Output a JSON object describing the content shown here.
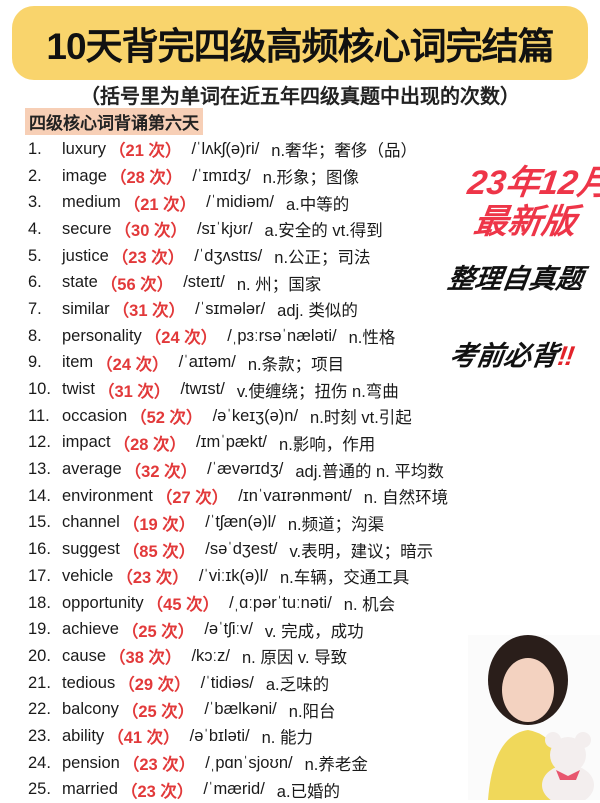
{
  "title": "10天背完四级高频核心词完结篇",
  "subtitle": "（括号里为单词在近五年四级真题中出现的次数）",
  "section_label": "四级核心词背诵第六天",
  "stickers": {
    "date": "23年12月",
    "edition": "最新版",
    "source": "整理自真题",
    "must": "考前必背",
    "must_mark": "‼"
  },
  "colors": {
    "banner": "#f9d46c",
    "count": "#e2393a",
    "section": "#f7cfb6",
    "sticker_red": "#ee3548"
  },
  "words": [
    {
      "n": "1.",
      "word": "luxury",
      "count": "（21 次）",
      "phonetic": "/ˈlʌkʃ(ə)ri/",
      "meaning": "n.奢华；奢侈（品）"
    },
    {
      "n": "2.",
      "word": "image",
      "count": "（28 次）",
      "phonetic": "/ˈɪmɪdʒ/",
      "meaning": "n.形象；图像"
    },
    {
      "n": "3.",
      "word": "medium",
      "count": "（21 次）",
      "phonetic": "/ˈmidiəm/",
      "meaning": "a.中等的"
    },
    {
      "n": "4.",
      "word": "secure",
      "count": "（30 次）",
      "phonetic": "/sɪˈkjʊr/",
      "meaning": "a.安全的 vt.得到"
    },
    {
      "n": "5.",
      "word": "justice",
      "count": "（23 次）",
      "phonetic": "/ˈdʒʌstɪs/",
      "meaning": "n.公正；司法"
    },
    {
      "n": "6.",
      "word": "state",
      "count": "（56 次）",
      "phonetic": "/steɪt/",
      "meaning": "n. 州；国家"
    },
    {
      "n": "7.",
      "word": "similar",
      "count": "（31 次）",
      "phonetic": "/ˈsɪmələr/",
      "meaning": "adj. 类似的"
    },
    {
      "n": "8.",
      "word": "personality",
      "count": "（24 次）",
      "phonetic": "/ˌpɜːrsəˈnæləti/",
      "meaning": "n.性格"
    },
    {
      "n": "9.",
      "word": "item",
      "count": "（24 次）",
      "phonetic": "/ˈaɪtəm/",
      "meaning": "n.条款；项目"
    },
    {
      "n": "10.",
      "word": "twist",
      "count": "（31 次）",
      "phonetic": "/twɪst/",
      "meaning": "v.使缠绕；扭伤 n.弯曲"
    },
    {
      "n": "11.",
      "word": "occasion",
      "count": "（52 次）",
      "phonetic": "/əˈkeɪʒ(ə)n/",
      "meaning": "n.时刻 vt.引起"
    },
    {
      "n": "12.",
      "word": "impact",
      "count": "（28 次）",
      "phonetic": "/ɪmˈpækt/",
      "meaning": "n.影响，作用"
    },
    {
      "n": "13.",
      "word": "average",
      "count": "（32 次）",
      "phonetic": "/ˈævərɪdʒ/",
      "meaning": "adj.普通的 n. 平均数"
    },
    {
      "n": "14.",
      "word": "environment",
      "count": "（27 次）",
      "phonetic": "/ɪnˈvaɪrənmənt/",
      "meaning": "n. 自然环境"
    },
    {
      "n": "15.",
      "word": "channel",
      "count": "（19 次）",
      "phonetic": "/ˈtʃæn(ə)l/",
      "meaning": "n.频道；沟渠"
    },
    {
      "n": "16.",
      "word": "suggest",
      "count": "（85 次）",
      "phonetic": "/səˈdʒest/",
      "meaning": "v.表明，建议；暗示"
    },
    {
      "n": "17.",
      "word": "vehicle",
      "count": "（23 次）",
      "phonetic": "/ˈviːɪk(ə)l/",
      "meaning": "n.车辆，交通工具"
    },
    {
      "n": "18.",
      "word": "opportunity",
      "count": "（45 次）",
      "phonetic": "/ˌɑːpərˈtuːnəti/",
      "meaning": "n. 机会"
    },
    {
      "n": "19.",
      "word": "achieve",
      "count": "（25 次）",
      "phonetic": "/əˈtʃiːv/",
      "meaning": "v. 完成，成功"
    },
    {
      "n": "20.",
      "word": "cause",
      "count": "（38 次）",
      "phonetic": "/kɔːz/",
      "meaning": "n. 原因 v. 导致"
    },
    {
      "n": "21.",
      "word": "tedious",
      "count": "（29 次）",
      "phonetic": "/ˈtidiəs/",
      "meaning": "a.乏味的"
    },
    {
      "n": "22.",
      "word": "balcony",
      "count": "（25 次）",
      "phonetic": "/ˈbælkəni/",
      "meaning": "n.阳台"
    },
    {
      "n": "23.",
      "word": "ability",
      "count": "（41 次）",
      "phonetic": "/əˈbɪləti/",
      "meaning": "n. 能力"
    },
    {
      "n": "24.",
      "word": "pension",
      "count": "（23 次）",
      "phonetic": "/ˌpɑnˈsjoʊn/",
      "meaning": "n.养老金"
    },
    {
      "n": "25.",
      "word": "married",
      "count": "（23 次）",
      "phonetic": "/ˈmærid/",
      "meaning": "a.已婚的"
    }
  ]
}
